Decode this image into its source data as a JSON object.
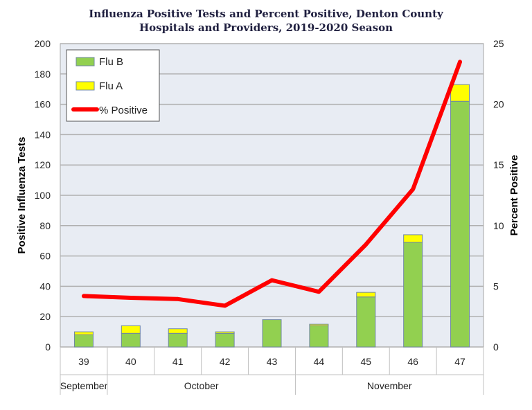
{
  "chart_data": {
    "type": "bar",
    "title": "Influenza Positive Tests and Percent Positive, Denton County Hospitals and Providers, 2019-2020 Season",
    "title_lines": [
      "Influenza Positive Tests and Percent Positive, Denton County",
      "Hospitals and Providers, 2019-2020 Season"
    ],
    "categories": [
      "39",
      "40",
      "41",
      "42",
      "43",
      "44",
      "45",
      "46",
      "47"
    ],
    "months": [
      {
        "label": "September",
        "span": 1
      },
      {
        "label": "October",
        "span": 4
      },
      {
        "label": "November",
        "span": 4
      }
    ],
    "series": [
      {
        "name": "Flu B",
        "type": "bar",
        "stack": true,
        "axis": "left",
        "color": "#92d050",
        "values": [
          8,
          9,
          9,
          9,
          18,
          14,
          33,
          69,
          162
        ]
      },
      {
        "name": "Flu A",
        "type": "bar",
        "stack": true,
        "axis": "left",
        "color": "#ffff00",
        "values": [
          2,
          5,
          3,
          1,
          0,
          1,
          3,
          5,
          11
        ]
      },
      {
        "name": "% Positive",
        "type": "line",
        "axis": "right",
        "color": "#ff0000",
        "values": [
          4.2,
          4.05,
          3.95,
          3.4,
          5.5,
          4.55,
          8.45,
          13.0,
          23.5
        ]
      }
    ],
    "ylabel": "Positive Influenza Tests",
    "ylim": [
      0,
      200
    ],
    "yticks": [
      0,
      20,
      40,
      60,
      80,
      100,
      120,
      140,
      160,
      180,
      200
    ],
    "y2label": "Percent Positive",
    "y2lim": [
      0,
      25
    ],
    "y2ticks": [
      0,
      5,
      10,
      15,
      20,
      25
    ],
    "grid": true,
    "legend": "top-left"
  }
}
